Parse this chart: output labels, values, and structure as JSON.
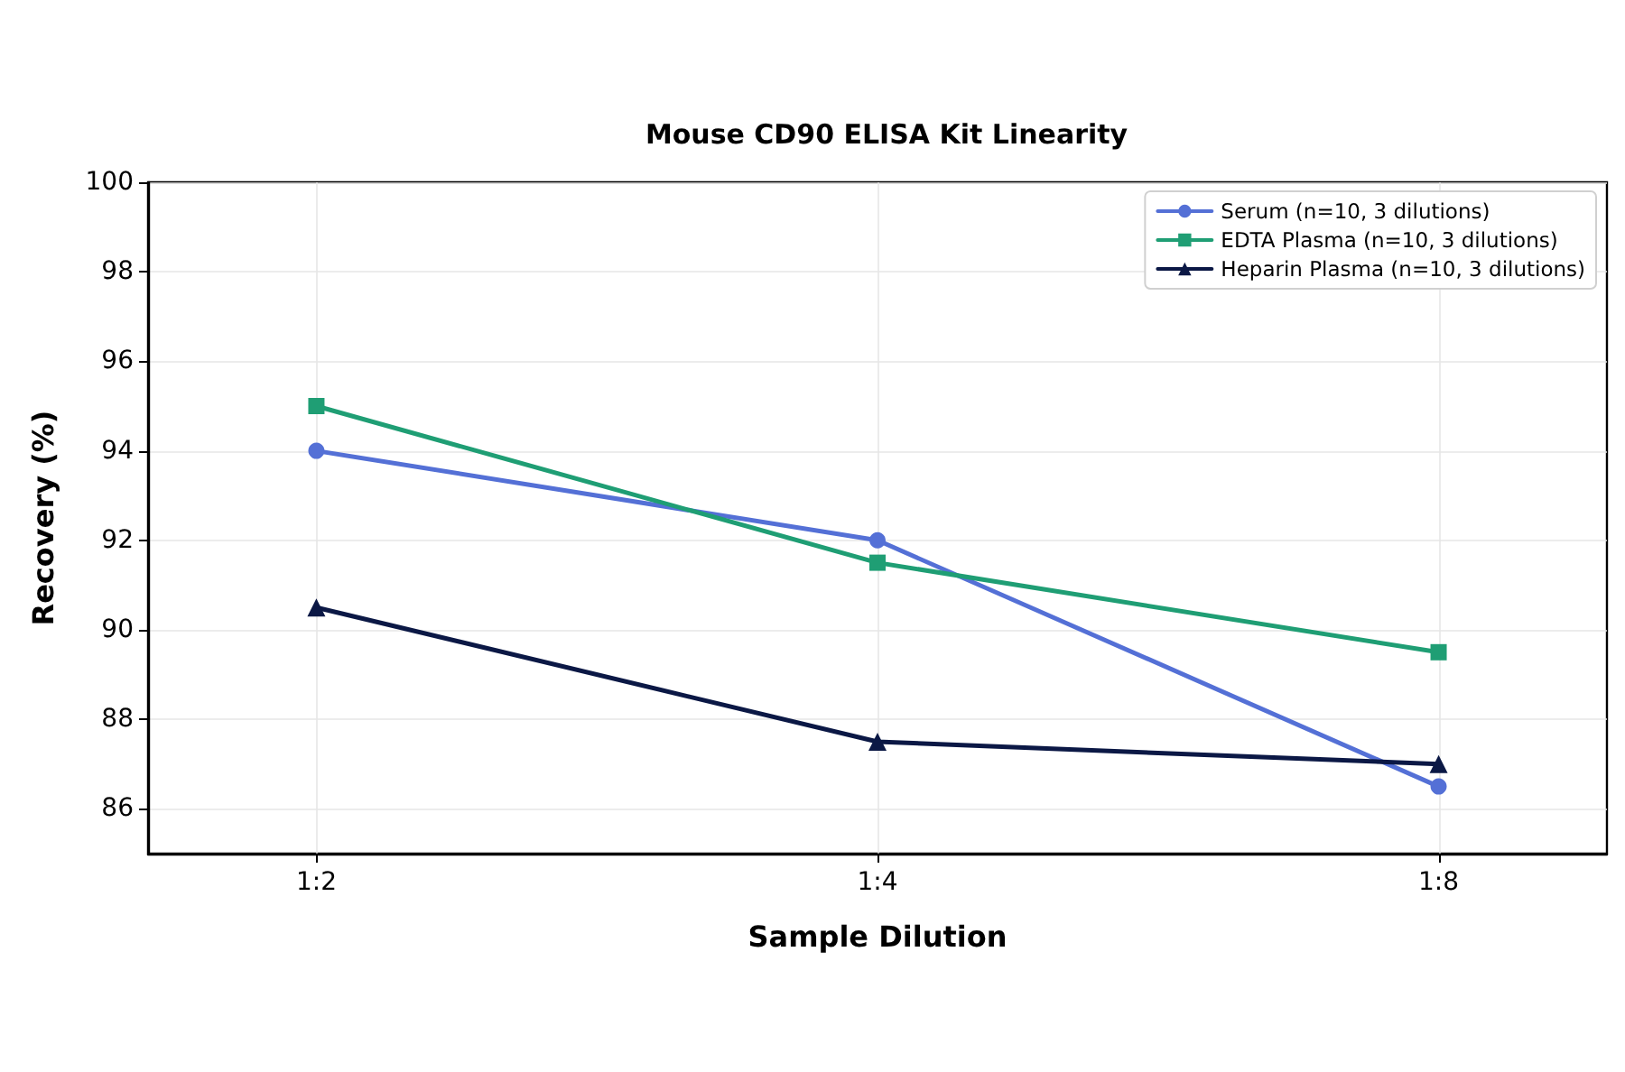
{
  "chart_data": {
    "type": "line",
    "title": "Mouse CD90 ELISA Kit Linearity",
    "xlabel": "Sample Dilution",
    "ylabel": "Recovery (%)",
    "categories": [
      "1:2",
      "1:4",
      "1:8"
    ],
    "series": [
      {
        "name": "Serum (n=10, 3 dilutions)",
        "color": "#5470d6",
        "marker": "circle",
        "values": [
          94,
          92,
          86.5
        ]
      },
      {
        "name": "EDTA Plasma (n=10, 3 dilutions)",
        "color": "#1f9e74",
        "marker": "square",
        "values": [
          95,
          91.5,
          89.5
        ]
      },
      {
        "name": "Heparin Plasma (n=10, 3 dilutions)",
        "color": "#0b1845",
        "marker": "triangle",
        "values": [
          90.5,
          87.5,
          87
        ]
      }
    ],
    "ylim": [
      85,
      100
    ],
    "yticks": [
      86,
      88,
      90,
      92,
      94,
      96,
      98,
      100
    ],
    "grid": true,
    "legend": "top right",
    "line_style": "solid"
  }
}
